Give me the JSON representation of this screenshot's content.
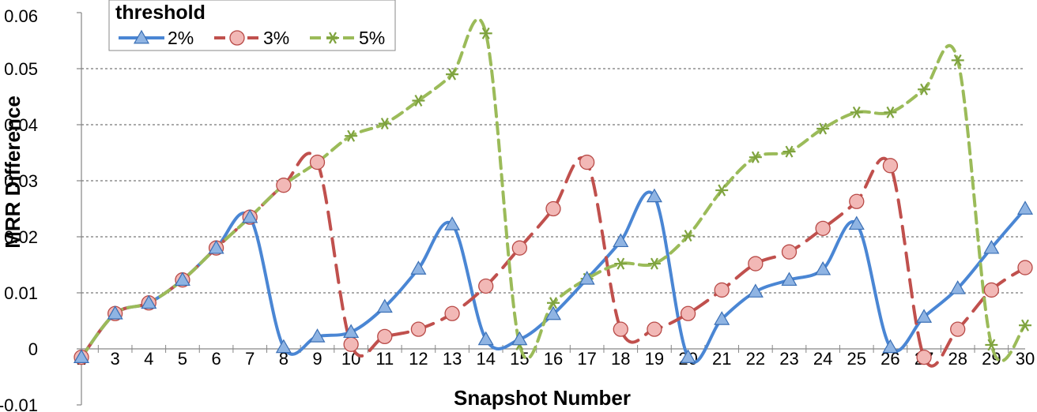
{
  "chart_data": {
    "type": "line",
    "xlabel": "Snapshot Number",
    "ylabel": "MRR Difference",
    "x": [
      2,
      3,
      4,
      5,
      6,
      7,
      8,
      9,
      10,
      11,
      12,
      13,
      14,
      15,
      16,
      17,
      18,
      19,
      20,
      21,
      22,
      23,
      24,
      25,
      26,
      27,
      28,
      29,
      30
    ],
    "xlim": [
      2,
      30
    ],
    "ylim": [
      -0.01,
      0.06
    ],
    "yticks": [
      -0.01,
      0,
      0.01,
      0.02,
      0.03,
      0.04,
      0.05,
      0.06
    ],
    "ytick_labels": [
      "-0.01",
      "0",
      "0.01",
      "0.02",
      "0.03",
      "0.04",
      "0.05",
      "0.06"
    ],
    "grid": "horizontal dashed at 0.02, 0.03, 0.04, 0.05",
    "legend": {
      "title": "threshold",
      "placement": "top-left"
    },
    "series": [
      {
        "name": "2%",
        "color": "#4a86d4",
        "marker": "triangle",
        "line_style": "solid",
        "values": [
          -0.0015,
          0.0063,
          0.0082,
          0.0123,
          0.018,
          0.0235,
          0.0003,
          0.0022,
          0.003,
          0.0075,
          0.0143,
          0.0222,
          0.0017,
          0.0017,
          0.0062,
          0.0125,
          0.0192,
          0.0272,
          -0.0015,
          0.0053,
          0.0102,
          0.0123,
          0.0142,
          0.0223,
          0.0003,
          0.0057,
          0.0108,
          0.018,
          0.025
        ]
      },
      {
        "name": "3%",
        "color": "#c0504d",
        "marker": "circle",
        "line_style": "dashed",
        "values": [
          -0.0015,
          0.0063,
          0.0082,
          0.0123,
          0.018,
          0.0235,
          0.0292,
          0.0333,
          0.0008,
          0.0022,
          0.0035,
          0.0063,
          0.0112,
          0.018,
          0.025,
          0.0333,
          0.0035,
          0.0035,
          0.0063,
          0.0105,
          0.0152,
          0.0173,
          0.0215,
          0.0263,
          0.0327,
          -0.0015,
          0.0035,
          0.0105,
          0.0145
        ]
      },
      {
        "name": "5%",
        "color": "#9bbb59",
        "marker": "asterisk",
        "line_style": "dashed",
        "values": [
          -0.0015,
          0.0063,
          0.0082,
          0.0123,
          0.018,
          0.0235,
          0.0292,
          0.0333,
          0.038,
          0.0402,
          0.0443,
          0.049,
          0.0563,
          0.0008,
          0.0082,
          0.0125,
          0.0152,
          0.0152,
          0.0202,
          0.0283,
          0.0342,
          0.0352,
          0.0393,
          0.0422,
          0.0422,
          0.0463,
          0.0515,
          0.0007,
          0.0042
        ]
      }
    ]
  }
}
